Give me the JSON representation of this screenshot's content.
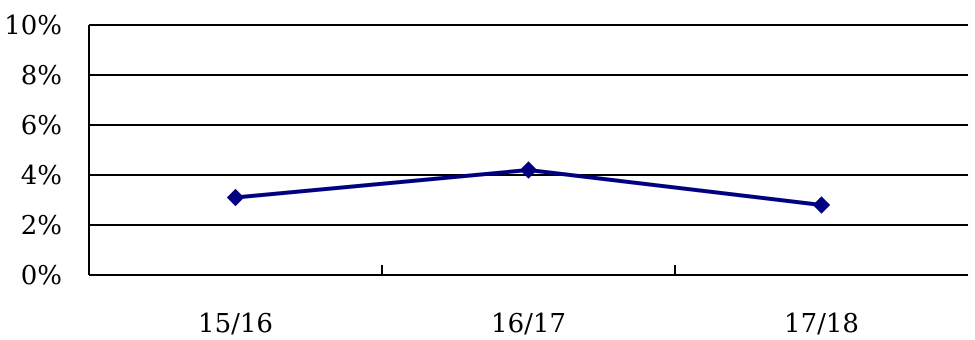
{
  "chart_data": {
    "type": "line",
    "categories": [
      "15/16",
      "16/17",
      "17/18"
    ],
    "series": [
      {
        "values": [
          3.1,
          4.2,
          2.8
        ]
      }
    ],
    "y_ticks": [
      "0%",
      "2%",
      "4%",
      "6%",
      "8%",
      "10%"
    ],
    "ylim": [
      0,
      10
    ],
    "grid": true,
    "marker": "diamond",
    "line_color": "#000080",
    "title": "",
    "xlabel": "",
    "ylabel": ""
  }
}
